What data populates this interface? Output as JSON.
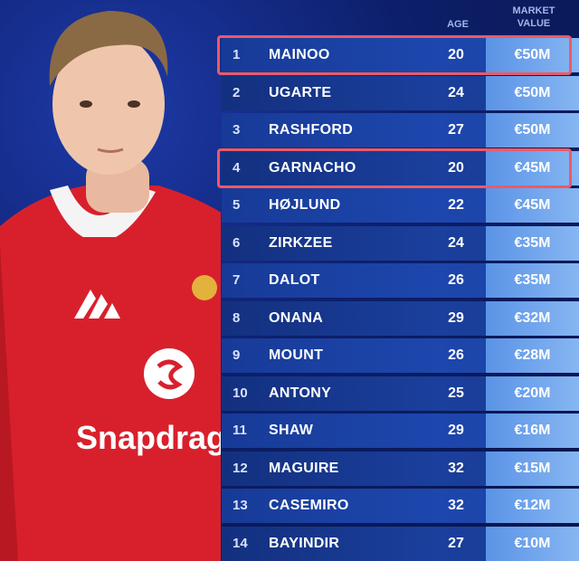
{
  "shirt_text": "Snapdrag",
  "table": {
    "headers": {
      "age": "AGE",
      "value": "MARKET VALUE"
    },
    "rows": [
      {
        "rank": 1,
        "name": "MAINOO",
        "age": 20,
        "value": "€50M",
        "highlight": true
      },
      {
        "rank": 2,
        "name": "UGARTE",
        "age": 24,
        "value": "€50M",
        "highlight": false
      },
      {
        "rank": 3,
        "name": "RASHFORD",
        "age": 27,
        "value": "€50M",
        "highlight": false
      },
      {
        "rank": 4,
        "name": "GARNACHO",
        "age": 20,
        "value": "€45M",
        "highlight": true
      },
      {
        "rank": 5,
        "name": "HØJLUND",
        "age": 22,
        "value": "€45M",
        "highlight": false
      },
      {
        "rank": 6,
        "name": "ZIRKZEE",
        "age": 24,
        "value": "€35M",
        "highlight": false
      },
      {
        "rank": 7,
        "name": "DALOT",
        "age": 26,
        "value": "€35M",
        "highlight": false
      },
      {
        "rank": 8,
        "name": "ONANA",
        "age": 29,
        "value": "€32M",
        "highlight": false
      },
      {
        "rank": 9,
        "name": "MOUNT",
        "age": 26,
        "value": "€28M",
        "highlight": false
      },
      {
        "rank": 10,
        "name": "ANTONY",
        "age": 25,
        "value": "€20M",
        "highlight": false
      },
      {
        "rank": 11,
        "name": "SHAW",
        "age": 29,
        "value": "€16M",
        "highlight": false
      },
      {
        "rank": 12,
        "name": "MAGUIRE",
        "age": 32,
        "value": "€15M",
        "highlight": false
      },
      {
        "rank": 13,
        "name": "CASEMIRO",
        "age": 32,
        "value": "€12M",
        "highlight": false
      },
      {
        "rank": 14,
        "name": "BAYINDIR",
        "age": 27,
        "value": "€10M",
        "highlight": false
      }
    ]
  }
}
